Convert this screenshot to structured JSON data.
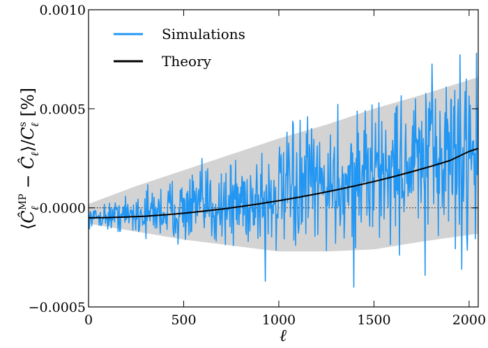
{
  "chart_data": {
    "type": "line",
    "title": "",
    "xlabel": "ℓ",
    "ylabel": "⟨Ĉ_ℓ^MP − Ĉ_ℓ⟩ / C_ℓ^s [%]",
    "ylabel_parts": {
      "open": "⟨",
      "c1": "Ĉ",
      "c1_sub": "ℓ",
      "c1_sup": "MP",
      "minus": " − ",
      "c2": "Ĉ",
      "c2_sub": "ℓ",
      "close": "⟩/",
      "c3": "C",
      "c3_sub": "ℓ",
      "c3_sup": "s",
      "unit": " [%]"
    },
    "xlim": [
      0,
      2048
    ],
    "ylim": [
      -0.0005,
      0.001
    ],
    "xticks": [
      0,
      500,
      1000,
      1500,
      2000
    ],
    "xtick_labels": [
      "0",
      "500",
      "1000",
      "1500",
      "2000"
    ],
    "yticks": [
      -0.0005,
      0.0,
      0.0005,
      0.001
    ],
    "ytick_labels": [
      "−0.0005",
      "0.0000",
      "0.0005",
      "0.0010"
    ],
    "zero_line": {
      "y": 0.0,
      "style": "dotted"
    },
    "legend": {
      "placement": "top-left",
      "entries": [
        "Simulations",
        "Theory"
      ]
    },
    "band": {
      "name": "scatter band",
      "color": "#d3d3d3",
      "x": [
        0,
        250,
        500,
        750,
        1000,
        1250,
        1500,
        1750,
        2048
      ],
      "upper": [
        2e-05,
        0.00011,
        0.00019,
        0.00027,
        0.00035,
        0.00042,
        0.0005,
        0.00057,
        0.00066
      ],
      "lower": [
        -8e-05,
        -0.00012,
        -0.00016,
        -0.00019,
        -0.00022,
        -0.00022,
        -0.00021,
        -0.00017,
        -0.00013
      ]
    },
    "series": [
      {
        "name": "Simulations",
        "color": "#2196f3",
        "x_start": 2,
        "x_end": 2048,
        "x_step": 3,
        "center": [
          [
            0,
            -5e-05
          ],
          [
            500,
            -1e-05
          ],
          [
            1000,
            6e-05
          ],
          [
            1500,
            0.00017
          ],
          [
            2048,
            0.00031
          ]
        ],
        "halfwidth": [
          [
            0,
            3e-05
          ],
          [
            500,
            0.00013
          ],
          [
            1000,
            0.00021
          ],
          [
            1500,
            0.00026
          ],
          [
            2048,
            0.00033
          ]
        ],
        "spikes": [
          {
            "x": 930,
            "y": -0.00037
          },
          {
            "x": 1395,
            "y": -0.0004
          },
          {
            "x": 1770,
            "y": -0.00034
          },
          {
            "x": 1960,
            "y": -0.00031
          },
          {
            "x": 2040,
            "y": 0.00078
          },
          {
            "x": 1985,
            "y": 0.00065
          },
          {
            "x": 1880,
            "y": 0.00061
          },
          {
            "x": 1455,
            "y": 0.00049
          },
          {
            "x": 1150,
            "y": 0.00046
          }
        ]
      },
      {
        "name": "Theory",
        "color": "#000000",
        "x": [
          0,
          100,
          200,
          300,
          400,
          500,
          600,
          700,
          800,
          900,
          1000,
          1100,
          1200,
          1300,
          1400,
          1500,
          1600,
          1700,
          1800,
          1900,
          2000,
          2048
        ],
        "values": [
          -5e-05,
          -4.9e-05,
          -4.6e-05,
          -4.2e-05,
          -3.5e-05,
          -2.7e-05,
          -1.7e-05,
          -6e-06,
          7e-06,
          2.1e-05,
          3.6e-05,
          5.3e-05,
          7.1e-05,
          9e-05,
          0.000111,
          0.000133,
          0.000157,
          0.000183,
          0.00021,
          0.000239,
          0.000285,
          0.0003
        ]
      }
    ]
  }
}
